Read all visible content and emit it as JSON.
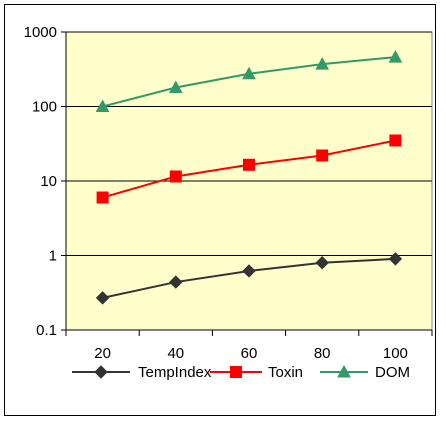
{
  "chart_data": {
    "type": "line",
    "title": "",
    "xlabel": "",
    "ylabel": "",
    "x": [
      20,
      40,
      60,
      80,
      100
    ],
    "x_ticks": [
      "20",
      "40",
      "60",
      "80",
      "100"
    ],
    "y_scale": "log",
    "ylim": [
      0.1,
      1000
    ],
    "y_ticks": [
      "0.1",
      "1",
      "10",
      "100",
      "1000"
    ],
    "grid": "horizontal",
    "plot_background": "#ffffcc",
    "legend_position": "bottom",
    "series": [
      {
        "name": "TempIndex",
        "color": "#333333",
        "marker": "diamond",
        "values": [
          0.27,
          0.44,
          0.62,
          0.8,
          0.9
        ]
      },
      {
        "name": "Toxin",
        "color": "#ff0000",
        "marker": "square",
        "values": [
          6,
          11.5,
          16.5,
          22,
          35
        ]
      },
      {
        "name": "DOM",
        "color": "#339966",
        "marker": "triangle",
        "values": [
          100,
          180,
          275,
          370,
          460
        ]
      }
    ]
  }
}
